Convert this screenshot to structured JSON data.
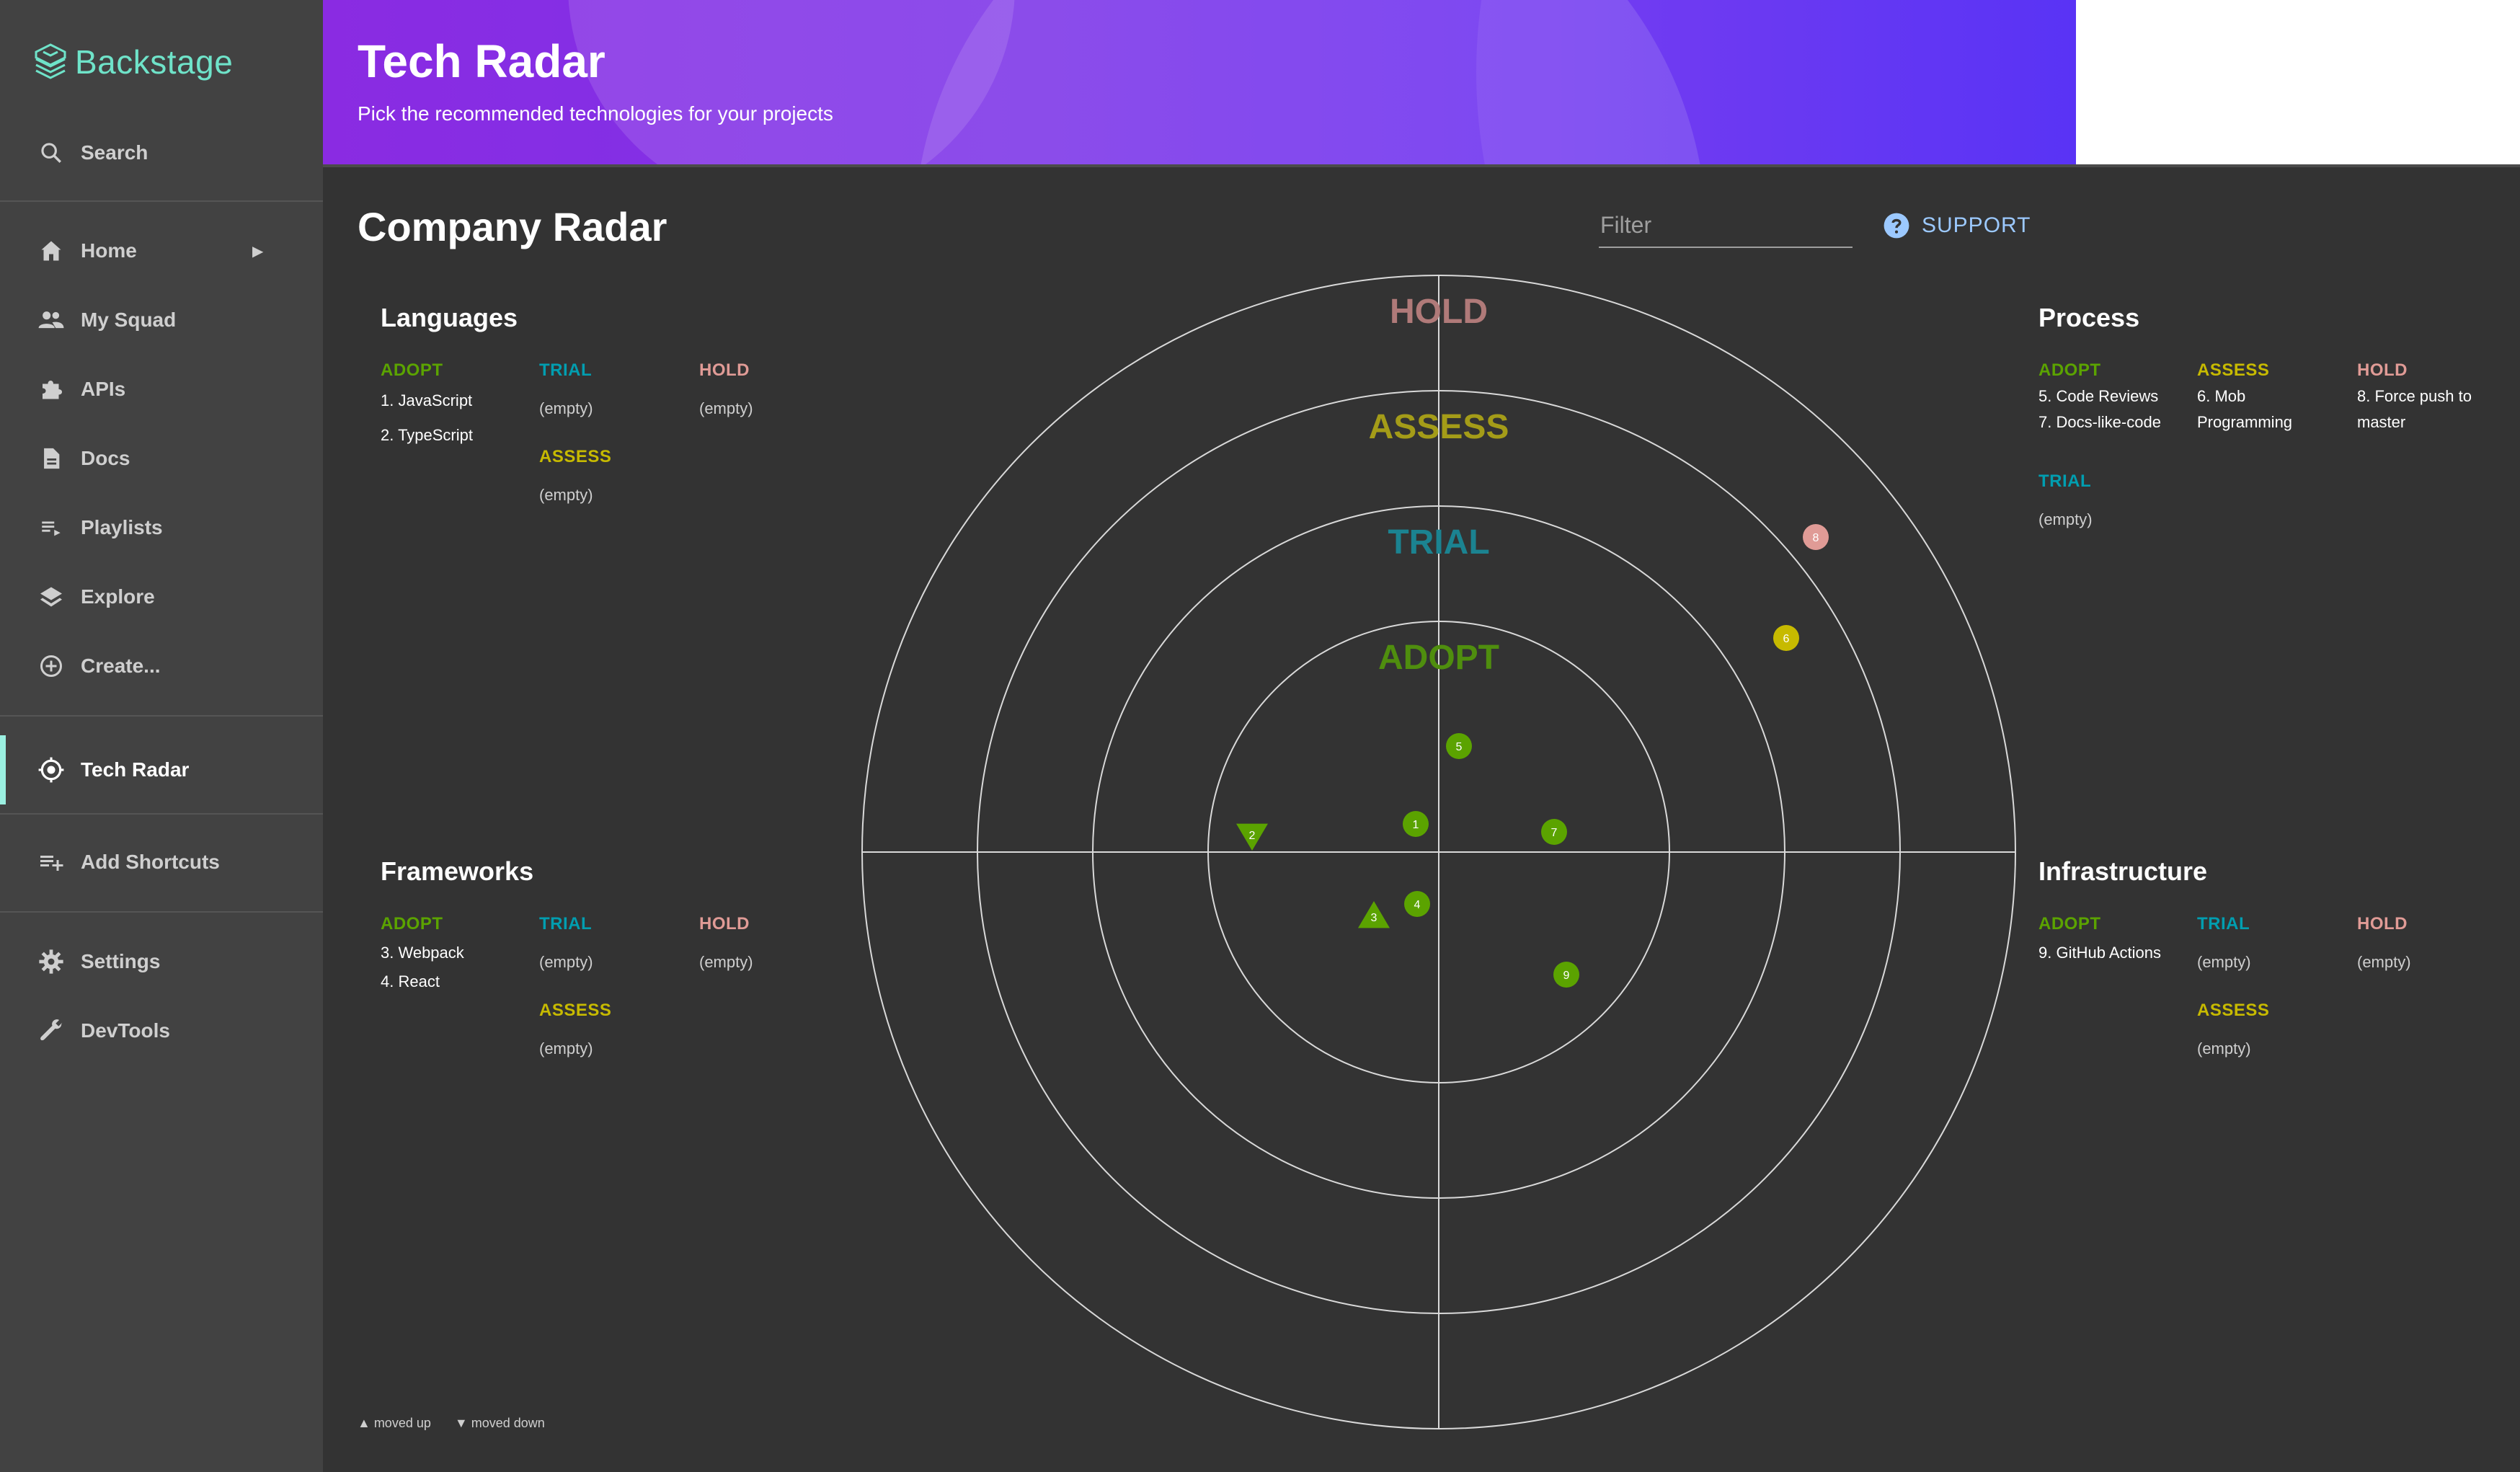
{
  "sidebar": {
    "logo_text": "Backstage",
    "search_label": "Search",
    "items": [
      {
        "label": "Home",
        "icon": "home-icon"
      },
      {
        "label": "My Squad",
        "icon": "people-icon"
      },
      {
        "label": "APIs",
        "icon": "puzzle-icon"
      },
      {
        "label": "Docs",
        "icon": "document-icon"
      },
      {
        "label": "Playlists",
        "icon": "playlist-icon"
      },
      {
        "label": "Explore",
        "icon": "layers-icon"
      },
      {
        "label": "Create...",
        "icon": "add-circle-icon"
      },
      {
        "label": "Tech Radar",
        "icon": "radar-icon",
        "active": true
      },
      {
        "label": "Add Shortcuts",
        "icon": "playlist-add-icon"
      },
      {
        "label": "Settings",
        "icon": "gear-icon"
      },
      {
        "label": "DevTools",
        "icon": "wrench-icon"
      }
    ]
  },
  "header": {
    "title": "Tech Radar",
    "subtitle": "Pick the recommended technologies for your projects"
  },
  "main": {
    "title": "Company Radar",
    "filter_placeholder": "Filter",
    "support_label": "SUPPORT"
  },
  "rings": {
    "hold": "HOLD",
    "assess": "ASSESS",
    "trial": "TRIAL",
    "adopt": "ADOPT"
  },
  "ring_colors": {
    "adopt": "#5ba300",
    "trial": "#009eb0",
    "assess": "#c7ba00",
    "hold": "#e09b96"
  },
  "quadrants": {
    "languages": {
      "title": "Languages",
      "adopt": [
        "1. JavaScript",
        "2. TypeScript"
      ],
      "trial": "(empty)",
      "assess": "(empty)",
      "hold": "(empty)"
    },
    "process": {
      "title": "Process",
      "adopt": [
        "5. Code Reviews",
        "7. Docs-like-code"
      ],
      "assess": "6. Mob Programming",
      "hold": "8. Force push to master",
      "trial": "(empty)"
    },
    "frameworks": {
      "title": "Frameworks",
      "adopt": [
        "3. Webpack",
        "4. React"
      ],
      "trial": "(empty)",
      "assess": "(empty)",
      "hold": "(empty)"
    },
    "infrastructure": {
      "title": "Infrastructure",
      "adopt": [
        "9. GitHub Actions"
      ],
      "trial": "(empty)",
      "assess": "(empty)",
      "hold": "(empty)"
    }
  },
  "blips": [
    {
      "id": "1",
      "ring": "adopt",
      "shape": "circle"
    },
    {
      "id": "2",
      "ring": "adopt",
      "shape": "triangle-down"
    },
    {
      "id": "3",
      "ring": "adopt",
      "shape": "triangle-up"
    },
    {
      "id": "4",
      "ring": "adopt",
      "shape": "circle"
    },
    {
      "id": "5",
      "ring": "adopt",
      "shape": "circle"
    },
    {
      "id": "6",
      "ring": "assess",
      "shape": "circle"
    },
    {
      "id": "7",
      "ring": "adopt",
      "shape": "circle"
    },
    {
      "id": "8",
      "ring": "hold",
      "shape": "circle"
    },
    {
      "id": "9",
      "ring": "adopt",
      "shape": "circle"
    }
  ],
  "legend": {
    "moved_up": "▲ moved up",
    "moved_down": "▼ moved down"
  }
}
